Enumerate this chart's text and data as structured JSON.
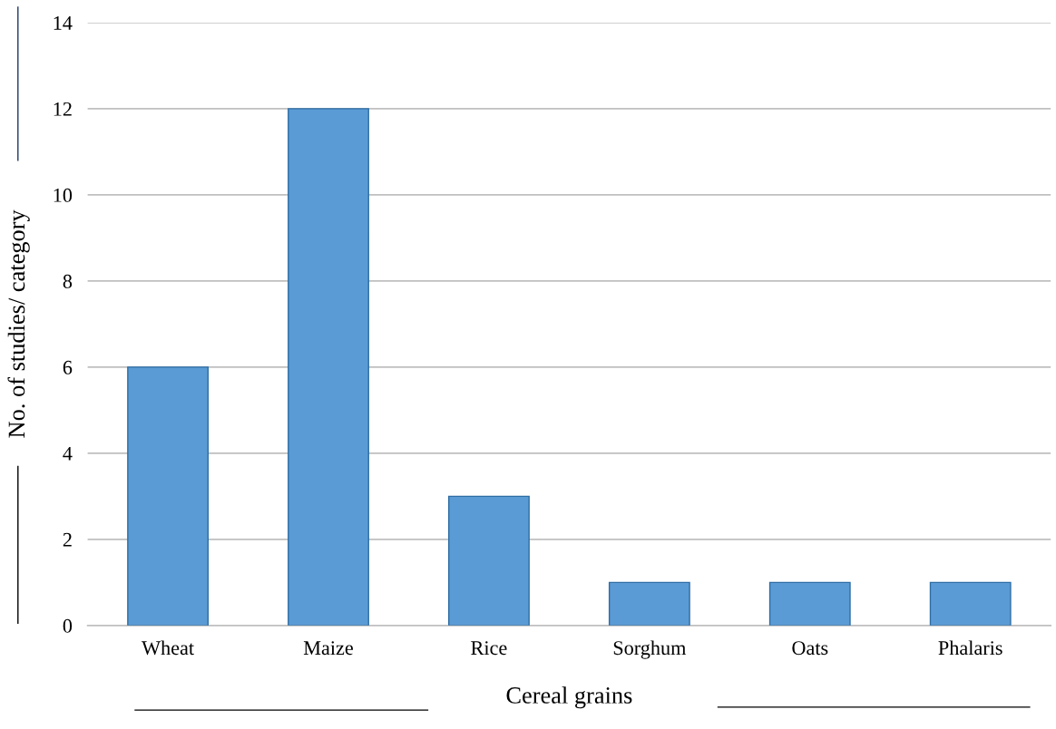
{
  "chart_data": {
    "type": "bar",
    "xlabel": "Cereal grains",
    "ylabel": "No. of studies/ category",
    "categories": [
      "Wheat",
      "Maize",
      "Rice",
      "Sorghum",
      "Oats",
      "Phalaris"
    ],
    "values": [
      6,
      12,
      3,
      1,
      1,
      1
    ],
    "color": "#5b9bd5",
    "ylim": [
      0,
      14
    ],
    "yticks": [
      0,
      2,
      4,
      6,
      8,
      10,
      12,
      14
    ],
    "grid": "y"
  }
}
